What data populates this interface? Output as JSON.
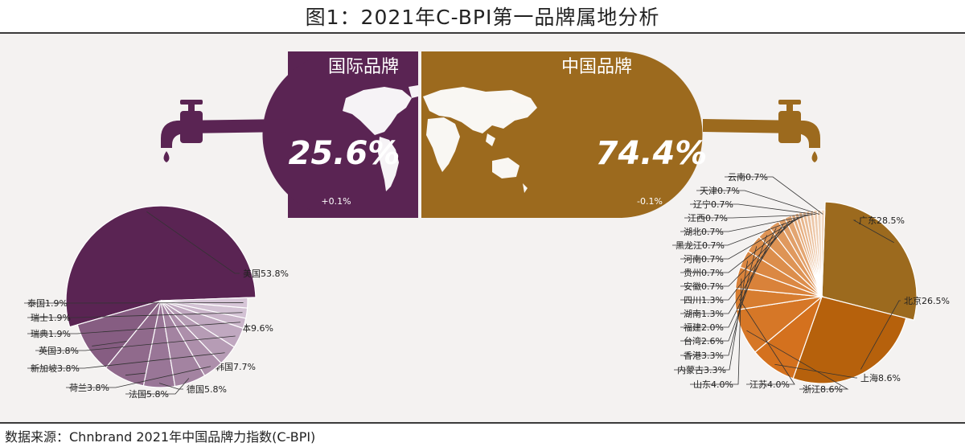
{
  "title": "图1：2021年C-BPI第一品牌属地分析",
  "source": "数据来源：Chnbrand 2021年中国品牌力指数(C-BPI)",
  "colors": {
    "international": "#5a2453",
    "china": "#9c6a1e",
    "bg": "#f4f2f1"
  },
  "icons": {
    "left_tap": "faucet-icon",
    "right_tap": "faucet-icon",
    "map": "world-map-icon"
  },
  "chart_data": [
    {
      "type": "bar",
      "categories": [
        "国际品牌",
        "中国品牌"
      ],
      "values": [
        25.6,
        74.4
      ],
      "value_labels": [
        "25.6%",
        "74.4%"
      ],
      "change_labels": [
        "+0.1%",
        "-0.1%"
      ],
      "colors": [
        "#5a2453",
        "#9c6a1e"
      ]
    },
    {
      "type": "pie",
      "labels": [
        "美国",
        "日本",
        "韩国",
        "德国",
        "法国",
        "荷兰",
        "新加坡",
        "英国",
        "瑞典",
        "瑞士",
        "泰国"
      ],
      "values": [
        53.8,
        9.6,
        7.7,
        5.8,
        5.8,
        3.8,
        3.8,
        3.8,
        1.9,
        1.9,
        1.9
      ],
      "display": [
        "美国53.8%",
        "日本9.6%",
        "韩国7.7%",
        "德国5.8%",
        "法国5.8%",
        "荷兰3.8%",
        "新加坡3.8%",
        "英国3.8%",
        "瑞典1.9%",
        "瑞士1.9%",
        "泰国1.9%"
      ]
    },
    {
      "type": "pie",
      "labels": [
        "广东",
        "北京",
        "上海",
        "浙江",
        "江苏",
        "山东",
        "内蒙古",
        "香港",
        "台湾",
        "福建",
        "湖南",
        "四川",
        "安徽",
        "贵州",
        "河南",
        "黑龙江",
        "湖北",
        "江西",
        "辽宁",
        "天津",
        "云南"
      ],
      "values": [
        28.5,
        26.5,
        8.6,
        8.6,
        4.0,
        4.0,
        3.3,
        3.3,
        2.6,
        2.0,
        1.3,
        1.3,
        0.7,
        0.7,
        0.7,
        0.7,
        0.7,
        0.7,
        0.7,
        0.7,
        0.7
      ],
      "display": [
        "广东28.5%",
        "北京26.5%",
        "上海8.6%",
        "浙江8.6%",
        "江苏4.0%",
        "山东4.0%",
        "内蒙古3.3%",
        "香港3.3%",
        "台湾2.6%",
        "福建2.0%",
        "湖南1.3%",
        "四川1.3%",
        "安徽0.7%",
        "贵州0.7%",
        "河南0.7%",
        "黑龙江0.7%",
        "湖北0.7%",
        "江西0.7%",
        "辽宁0.7%",
        "天津0.7%",
        "云南0.7%"
      ]
    }
  ]
}
